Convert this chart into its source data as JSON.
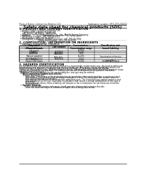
{
  "title": "Safety data sheet for chemical products (SDS)",
  "header_left": "Product Name: Lithium Ion Battery Cell",
  "header_right_line1": "Substance number: SRS-SDS-00010",
  "header_right_line2": "Established / Revision: Dec.7.2016",
  "section1_title": "1. PRODUCT AND COMPANY IDENTIFICATION",
  "section1_lines": [
    "  • Product name: Lithium Ion Battery Cell",
    "  • Product code: Cylindrical-type cell",
    "      (AF-B660U, (AF-B660L, (AF-B660A",
    "  • Company name:    Sanyo Electric Co., Ltd., Mobile Energy Company",
    "  • Address:          2001  Kamimaimai, Sumoto City, Hyogo, Japan",
    "  • Telephone number:  +81-799-26-4111",
    "  • Fax number:  +81-799-26-4129",
    "  • Emergency telephone number (daytime): +81-799-26-3962",
    "                               (Night and holiday): +81-799-26-4129"
  ],
  "section2_title": "2. COMPOSITION / INFORMATION ON INGREDIENTS",
  "section2_lines": [
    "  • Substance or preparation: Preparation",
    "  • Information about the chemical nature of product:"
  ],
  "table_headers": [
    "Component\nChemical name",
    "CAS number",
    "Concentration /\nConcentration range",
    "Classification and\nhazard labeling"
  ],
  "table_rows": [
    [
      "Lithium cobalt oxide\n(LiMnCoO2)",
      "-",
      "30-60%",
      "-"
    ],
    [
      "Iron",
      "7439-89-6",
      "10-20%",
      "-"
    ],
    [
      "Aluminum",
      "7429-90-5",
      "2-6%",
      "-"
    ],
    [
      "Graphite\n(Natural graphite)\n(Artificial graphite)",
      "7782-42-5\n7782-42-5",
      "10-20%",
      "-"
    ],
    [
      "Copper",
      "7440-50-8",
      "5-15%",
      "Sensitization of the skin\ngroup No.2"
    ],
    [
      "Organic electrolyte",
      "-",
      "10-20%",
      "Inflammable liquid"
    ]
  ],
  "section3_title": "3. HAZARDS IDENTIFICATION",
  "section3_para": [
    "For the battery cell, chemical materials are stored in a hermetically sealed metal case, designed to withstand",
    "temperatures and pressure-electrochemical during normal use. As a result, during normal use, there is no",
    "physical danger of ignition or explosion and there is no danger of hazardous materials leakage.",
    "  However, if exposed to a fire, added mechanical shocks, decomposed, when electrochemical reactions cause,",
    "the gas release cannot be operated. The battery cell case will be breached of fire-polisms, hazardous",
    "materials may be released.",
    "  Moreover, if heated strongly by the surrounding fire, soot gas may be emitted."
  ],
  "sub1": "  • Most important hazard and effects:",
  "sub1a": "      Human health effects:",
  "sub1b": [
    "          Inhalation: The release of the electrolyte has an anesthetic action and stimulates a respiratory tract.",
    "          Skin contact: The release of the electrolyte stimulates a skin. The electrolyte skin contact causes a",
    "          sore and stimulation on the skin.",
    "          Eye contact: The release of the electrolyte stimulates eyes. The electrolyte eye contact causes a sore",
    "          and stimulation on the eye. Especially, a substance that causes a strong inflammation of the eyes is",
    "          contained.",
    "          Environmental effects: Since a battery cell remains in the environment, do not throw out it into the",
    "          environment."
  ],
  "sub2": "  • Specific hazards:",
  "sub2a": [
    "          If the electrolyte contacts with water, it will generate detrimental hydrogen fluoride.",
    "          Since the used electrolyte is inflammable liquid, do not bring close to fire."
  ],
  "bg_color": "#ffffff",
  "text_color": "#000000",
  "line_color": "#000000"
}
